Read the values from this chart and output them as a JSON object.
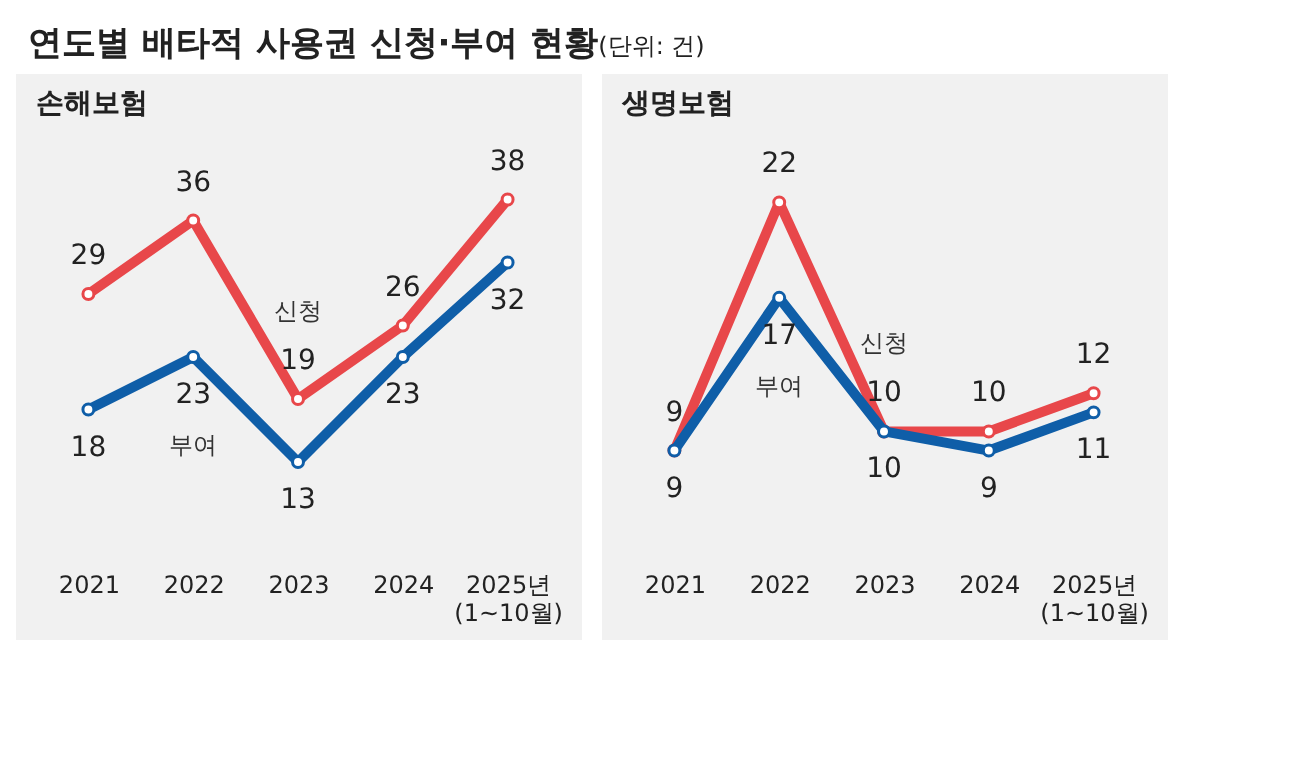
{
  "chart_data": [
    {
      "type": "line",
      "title": "손해보험",
      "annotations": [
        "연도별 배타적 사용권 신청·부여 현황",
        "(단위: 건)"
      ],
      "categories": [
        "2021",
        "2022",
        "2023",
        "2024",
        "2025년\n(1~10월)"
      ],
      "series": [
        {
          "name": "신청",
          "color": "#e8474a",
          "values": [
            29,
            36,
            19,
            26,
            38
          ]
        },
        {
          "name": "부여",
          "color": "#0f5ea8",
          "values": [
            18,
            23,
            13,
            23,
            32
          ]
        }
      ],
      "data_labels": true,
      "grid": false,
      "marker": "circle",
      "tick_labels": "x"
    },
    {
      "type": "line",
      "title": "생명보험",
      "categories": [
        "2021",
        "2022",
        "2023",
        "2024",
        "2025년\n(1~10월)"
      ],
      "series": [
        {
          "name": "신청",
          "color": "#e8474a",
          "values": [
            9,
            22,
            10,
            10,
            12
          ]
        },
        {
          "name": "부여",
          "color": "#0f5ea8",
          "values": [
            9,
            17,
            10,
            9,
            11
          ]
        }
      ],
      "data_labels": true,
      "grid": false,
      "marker": "circle",
      "tick_labels": "x"
    }
  ]
}
